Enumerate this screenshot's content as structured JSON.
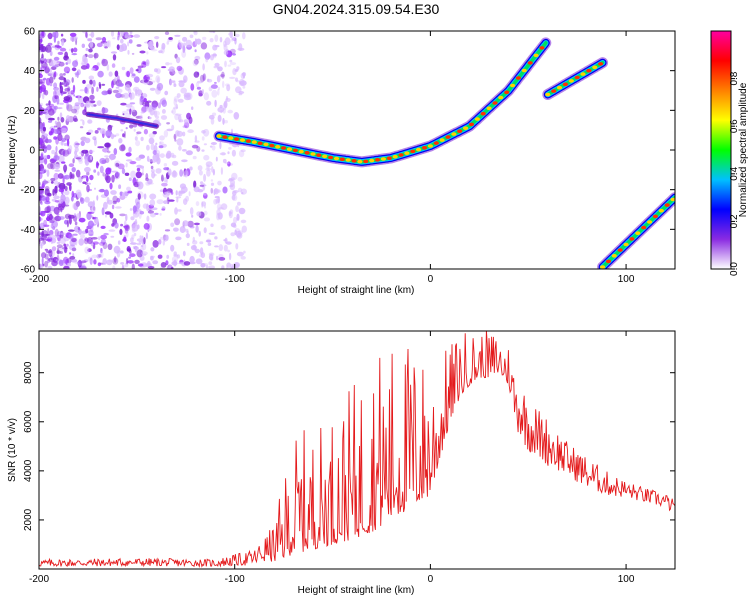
{
  "chart_data": [
    {
      "type": "heatmap",
      "title": "GN04.2024.315.09.54.E30",
      "xlabel": "Height of straight line (km)",
      "ylabel": "Frequency (Hz)",
      "xlim": [
        -200,
        125
      ],
      "ylim": [
        -60,
        60
      ],
      "xticks": [
        -200,
        -100,
        0,
        100
      ],
      "yticks": [
        60,
        40,
        20,
        0,
        -20,
        -40,
        -60
      ],
      "colorbar": {
        "label": "Normalized spectral amplitude",
        "range": [
          0,
          1
        ],
        "ticks": [
          "0.0",
          "0.2",
          "0.4",
          "0.6",
          "0.8"
        ],
        "stops": [
          "#ffffff",
          "#8a2be2",
          "#0000ff",
          "#00c0ff",
          "#00ff00",
          "#ffff00",
          "#ff8000",
          "#ff0000",
          "#ff00a0"
        ]
      },
      "traces": [
        {
          "name": "main-arc",
          "x": [
            -108,
            -90,
            -70,
            -50,
            -35,
            -20,
            0,
            20,
            40,
            59
          ],
          "y": [
            7,
            4,
            0,
            -4,
            -6,
            -4,
            2,
            12,
            30,
            54
          ],
          "amplitude": 0.7
        },
        {
          "name": "mid-segment",
          "x": [
            60,
            88
          ],
          "y": [
            28,
            44
          ],
          "amplitude": 0.7
        },
        {
          "name": "lower-segment",
          "x": [
            88,
            125
          ],
          "y": [
            -59,
            -24
          ],
          "amplitude": 0.7
        },
        {
          "name": "faint-left",
          "x": [
            -175,
            -160,
            -140
          ],
          "y": [
            18,
            16,
            12
          ],
          "amplitude": 0.2
        }
      ],
      "noise_band": {
        "x": [
          -200,
          -95
        ],
        "y": [
          -60,
          60
        ]
      }
    },
    {
      "type": "line",
      "xlabel": "Height of straight line (km)",
      "ylabel": "SNR (10 * v/v)",
      "xlim": [
        -200,
        125
      ],
      "ylim": [
        0,
        9700
      ],
      "xticks": [
        -200,
        -100,
        0,
        100
      ],
      "yticks": [
        2000,
        4000,
        6000,
        8000
      ],
      "series": [
        {
          "name": "SNR",
          "color": "#e41a1c",
          "envelope_x": [
            -200,
            -150,
            -110,
            -90,
            -80,
            -70,
            -60,
            -50,
            -40,
            -30,
            -20,
            -10,
            0,
            5,
            10,
            15,
            20,
            25,
            30,
            35,
            40,
            45,
            50,
            60,
            70,
            80,
            90,
            100,
            110,
            120,
            125
          ],
          "envelope_min": [
            100,
            120,
            100,
            150,
            300,
            600,
            800,
            1000,
            1200,
            1500,
            2000,
            2500,
            3000,
            4500,
            6000,
            7000,
            7500,
            7800,
            7800,
            8000,
            7500,
            5500,
            4800,
            4200,
            3800,
            3300,
            3000,
            2900,
            2700,
            2500,
            2200
          ],
          "envelope_max": [
            400,
            450,
            400,
            800,
            1800,
            5600,
            5800,
            6500,
            7500,
            9000,
            9500,
            9500,
            8500,
            8800,
            9200,
            9800,
            9800,
            9700,
            9800,
            9700,
            9300,
            8000,
            7000,
            6200,
            5200,
            4600,
            4000,
            3600,
            3300,
            3100,
            2800
          ]
        }
      ]
    }
  ]
}
